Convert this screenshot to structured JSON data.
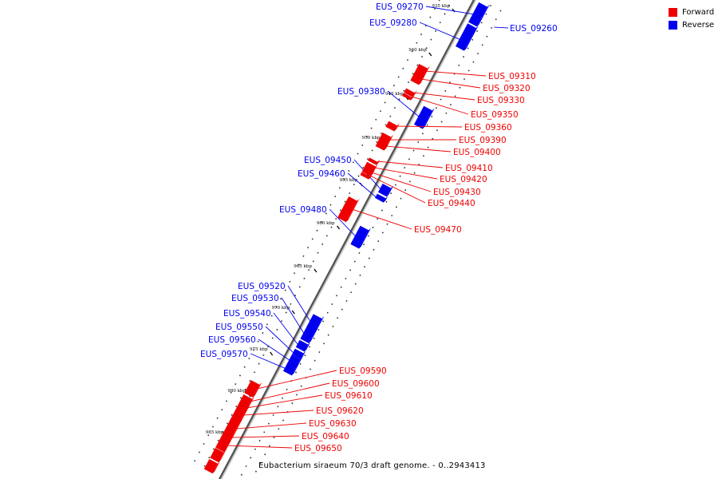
{
  "legend": {
    "forward_label": "Forward",
    "reverse_label": "Reverse",
    "forward_color": "#ee0000",
    "reverse_color": "#0000ee"
  },
  "caption": "Eubacterium siraeum 70/3 draft genome. - 0..2943413",
  "ticks": [
    "935 kbp",
    "940 kbp",
    "945 kbp",
    "950 kbp",
    "955 kbp",
    "960 kbp",
    "965 kbp",
    "970 kbp",
    "975 kbp",
    "980 kbp",
    "985 kbp"
  ],
  "forward_genes": [
    "EUS_09310",
    "EUS_09320",
    "EUS_09330",
    "EUS_09350",
    "EUS_09360",
    "EUS_09390",
    "EUS_09400",
    "EUS_09410",
    "EUS_09420",
    "EUS_09430",
    "EUS_09440",
    "EUS_09470",
    "EUS_09590",
    "EUS_09600",
    "EUS_09610",
    "EUS_09620",
    "EUS_09630",
    "EUS_09640",
    "EUS_09650"
  ],
  "reverse_genes": [
    "EUS_09260",
    "EUS_09270",
    "EUS_09280",
    "EUS_09380",
    "EUS_09450",
    "EUS_09460",
    "EUS_09480",
    "EUS_09520",
    "EUS_09530",
    "EUS_09540",
    "EUS_09550",
    "EUS_09560",
    "EUS_09570"
  ]
}
